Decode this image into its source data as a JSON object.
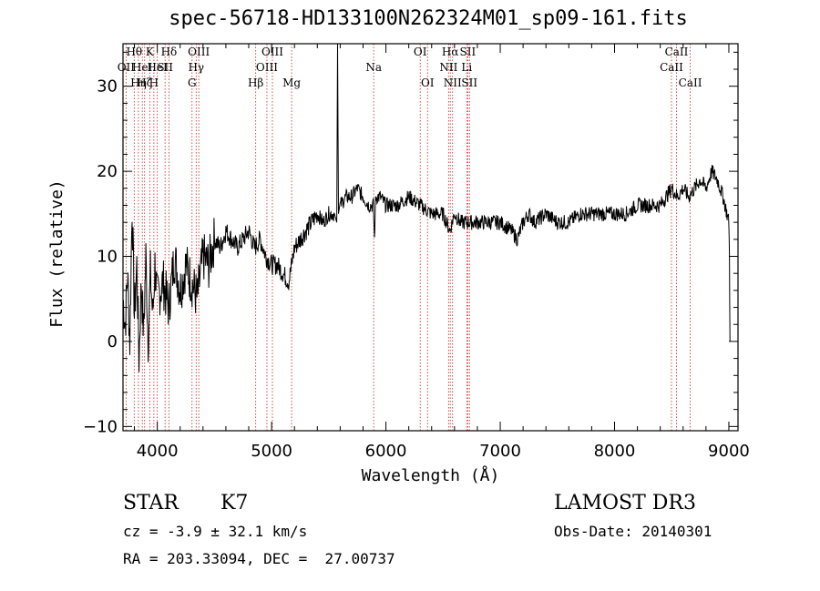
{
  "chart_data": {
    "type": "line",
    "title": "spec-56718-HD133100N262324M01_sp09-161.fits",
    "xlabel": "Wavelength (Å)",
    "ylabel": "Flux (relative)",
    "xlim": [
      3700,
      9080
    ],
    "ylim": [
      -10.5,
      35
    ],
    "xticks": [
      4000,
      5000,
      6000,
      7000,
      8000,
      9000
    ],
    "yticks": [
      -10,
      0,
      10,
      20,
      30
    ],
    "series": [
      {
        "name": "flux",
        "x": [
          3700,
          3720,
          3740,
          3760,
          3780,
          3800,
          3820,
          3840,
          3860,
          3880,
          3900,
          3920,
          3940,
          3960,
          3980,
          4000,
          4050,
          4100,
          4150,
          4200,
          4250,
          4300,
          4350,
          4400,
          4450,
          4500,
          4550,
          4600,
          4650,
          4700,
          4750,
          4800,
          4850,
          4900,
          4950,
          5000,
          5050,
          5100,
          5150,
          5200,
          5250,
          5300,
          5350,
          5400,
          5450,
          5500,
          5550,
          5570,
          5577,
          5585,
          5600,
          5650,
          5700,
          5750,
          5800,
          5850,
          5890,
          5900,
          5910,
          5950,
          6000,
          6100,
          6200,
          6300,
          6400,
          6500,
          6560,
          6600,
          6650,
          6700,
          6750,
          6800,
          6900,
          7000,
          7100,
          7150,
          7200,
          7250,
          7300,
          7400,
          7500,
          7600,
          7700,
          7800,
          7900,
          8000,
          8100,
          8200,
          8300,
          8400,
          8450,
          8500,
          8550,
          8600,
          8650,
          8700,
          8750,
          8800,
          8850,
          8900,
          8950,
          9000,
          9005,
          9010
        ],
        "y": [
          5,
          2,
          8,
          0,
          16,
          3,
          9,
          -2,
          7,
          1,
          10,
          0,
          8,
          3,
          9,
          5,
          7,
          4,
          10,
          6,
          9,
          7,
          5,
          10,
          9,
          12,
          11,
          13,
          12,
          11,
          12,
          13,
          11,
          12,
          10,
          9,
          9,
          8,
          7,
          11,
          12,
          13,
          14,
          15,
          14,
          15,
          15,
          14,
          35,
          15,
          16,
          17,
          17,
          18,
          17,
          16,
          16,
          12,
          17,
          17,
          16,
          16,
          17,
          16,
          15,
          15,
          13,
          15,
          14,
          14,
          14,
          14,
          14,
          14,
          13,
          12,
          14,
          15,
          14,
          15,
          14,
          14,
          15,
          15,
          15,
          15,
          15,
          16,
          16,
          16,
          17,
          18,
          17,
          18,
          17,
          18,
          19,
          18,
          20,
          19,
          17,
          14,
          10,
          0
        ]
      }
    ],
    "lines": [
      {
        "wl": 3727,
        "label": "OII",
        "row": 2
      },
      {
        "wl": 3798,
        "label": "Hθ",
        "row": 1
      },
      {
        "wl": 3835,
        "label": "Hη",
        "row": 3
      },
      {
        "wl": 3869,
        "label": "HeI",
        "row": 2
      },
      {
        "wl": 3889,
        "label": "Hζ",
        "row": 3
      },
      {
        "wl": 3934,
        "label": "K",
        "row": 1
      },
      {
        "wl": 3970,
        "label": "H",
        "row": 3
      },
      {
        "wl": 4000,
        "label": "HeI",
        "row": 2
      },
      {
        "wl": 4068,
        "label": "SII",
        "row": 2
      },
      {
        "wl": 4102,
        "label": "Hδ",
        "row": 1
      },
      {
        "wl": 4304,
        "label": "G",
        "row": 3
      },
      {
        "wl": 4340,
        "label": "Hγ",
        "row": 2
      },
      {
        "wl": 4363,
        "label": "OIII",
        "row": 1
      },
      {
        "wl": 4861,
        "label": "Hβ",
        "row": 3
      },
      {
        "wl": 4959,
        "label": "OIII",
        "row": 2
      },
      {
        "wl": 5007,
        "label": "OIII",
        "row": 1
      },
      {
        "wl": 5175,
        "label": "Mg",
        "row": 3
      },
      {
        "wl": 5893,
        "label": "Na",
        "row": 2
      },
      {
        "wl": 6300,
        "label": "OI",
        "row": 1
      },
      {
        "wl": 6364,
        "label": "OI",
        "row": 3
      },
      {
        "wl": 6548,
        "label": "NII",
        "row": 2
      },
      {
        "wl": 6563,
        "label": "Hα",
        "row": 1
      },
      {
        "wl": 6583,
        "label": "NII",
        "row": 3
      },
      {
        "wl": 6707,
        "label": "Li",
        "row": 2
      },
      {
        "wl": 6716,
        "label": "SII",
        "row": 1
      },
      {
        "wl": 6731,
        "label": "SII",
        "row": 3
      },
      {
        "wl": 8498,
        "label": "CaII",
        "row": 2
      },
      {
        "wl": 8542,
        "label": "CaII",
        "row": 1
      },
      {
        "wl": 8662,
        "label": "CaII",
        "row": 3
      }
    ]
  },
  "info": {
    "class": "STAR",
    "subclass": "K7",
    "survey": "LAMOST DR3",
    "cz": "cz = -3.9 ± 32.1 km/s",
    "obs_date": "Obs-Date: 20140301",
    "radec": "RA = 203.33094, DEC =  27.00737"
  },
  "colors": {
    "line_marker": "#cc2222",
    "spectrum": "#000000"
  }
}
